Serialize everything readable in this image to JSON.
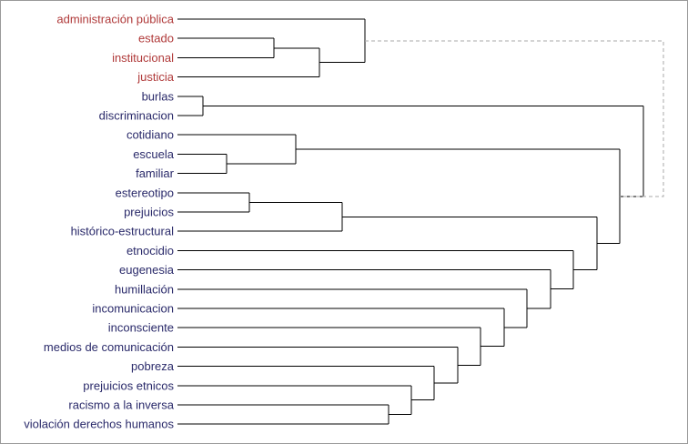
{
  "colors": {
    "cluster_highlight": "#b03a3a",
    "default_label": "#2a2a6a",
    "branch": "#000000",
    "dashed_link": "#aaaaaa"
  },
  "labels": [
    {
      "text": "administración pública",
      "group": "highlight"
    },
    {
      "text": "estado",
      "group": "highlight"
    },
    {
      "text": "institucional",
      "group": "highlight"
    },
    {
      "text": "justicia",
      "group": "highlight"
    },
    {
      "text": "burlas",
      "group": "default"
    },
    {
      "text": "discriminacion",
      "group": "default"
    },
    {
      "text": "cotidiano",
      "group": "default"
    },
    {
      "text": "escuela",
      "group": "default"
    },
    {
      "text": "familiar",
      "group": "default"
    },
    {
      "text": "estereotipo",
      "group": "default"
    },
    {
      "text": "prejuicios",
      "group": "default"
    },
    {
      "text": "histórico-estructural",
      "group": "default"
    },
    {
      "text": "etnocidio",
      "group": "default"
    },
    {
      "text": "eugenesia",
      "group": "default"
    },
    {
      "text": "humillación",
      "group": "default"
    },
    {
      "text": "incomunicacion",
      "group": "default"
    },
    {
      "text": "inconsciente",
      "group": "default"
    },
    {
      "text": "medios de comunicación",
      "group": "default"
    },
    {
      "text": "pobreza",
      "group": "default"
    },
    {
      "text": "prejuicios etnicos",
      "group": "default"
    },
    {
      "text": "racismo a la inversa",
      "group": "default"
    },
    {
      "text": "violación derechos humanos",
      "group": "default"
    }
  ]
}
